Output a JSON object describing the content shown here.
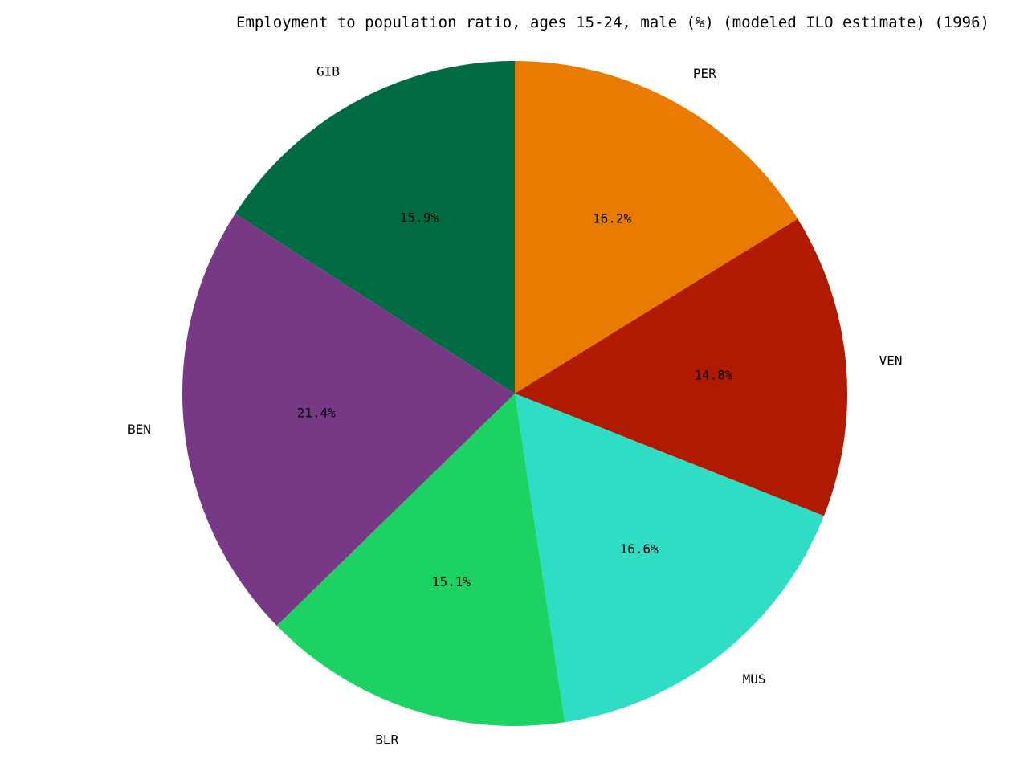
{
  "chart_data": {
    "type": "pie",
    "title": "Employment to population ratio, ages 15-24, male (%) (modeled ILO estimate) (1996)",
    "slices": [
      {
        "label": "PER",
        "percent_label": "16.2%",
        "value": 16.2,
        "color": "#e97c00"
      },
      {
        "label": "VEN",
        "percent_label": "14.8%",
        "value": 14.8,
        "color": "#b01a00"
      },
      {
        "label": "MUS",
        "percent_label": "16.6%",
        "value": 16.6,
        "color": "#2fdcc4"
      },
      {
        "label": "BLR",
        "percent_label": "15.1%",
        "value": 15.1,
        "color": "#1bd262"
      },
      {
        "label": "BEN",
        "percent_label": "21.4%",
        "value": 21.4,
        "color": "#773886"
      },
      {
        "label": "GIB",
        "percent_label": "15.9%",
        "value": 15.9,
        "color": "#006a43"
      }
    ],
    "start_angle": "top",
    "direction": "clockwise",
    "legend": "none"
  }
}
